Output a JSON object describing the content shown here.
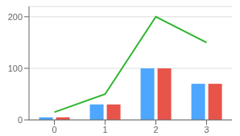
{
  "chart_data": {
    "type": "bar",
    "categories": [
      "0",
      "1",
      "2",
      "3"
    ],
    "series": [
      {
        "type": "bar",
        "color": "#4da6ff",
        "values": [
          5,
          30,
          100,
          70
        ]
      },
      {
        "type": "bar",
        "color": "#e8534a",
        "values": [
          5,
          30,
          100,
          70
        ]
      },
      {
        "type": "line",
        "color": "#2db52d",
        "values": [
          15,
          50,
          200,
          150
        ]
      }
    ],
    "ylim": [
      0,
      220
    ],
    "yticks": [
      0,
      100,
      200
    ],
    "grid": true
  }
}
